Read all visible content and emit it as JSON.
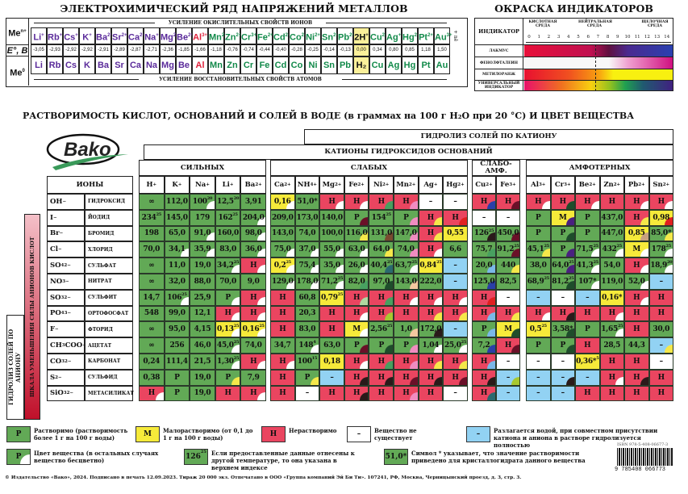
{
  "metals": {
    "title": "ЭЛЕКТРОХИМИЧЕСКИЙ РЯД НАПРЯЖЕНИЙ МЕТАЛЛОВ",
    "top_arrow": "УСИЛЕНИЕ ОКИСЛИТЕЛЬНЫХ СВОЙСТВ ИОНОВ",
    "bottom_arrow": "УСИЛЕНИЕ ВОССТАНОВИТЕЛЬНЫХ СВОЙСТВ АТОМОВ",
    "row_labels": {
      "ion": "Me",
      "ion_sup": "n+",
      "e": "E°, B",
      "atom": "Me",
      "atom_sup": "0"
    },
    "side_label": "+ nē",
    "ions": [
      [
        "Li",
        "+"
      ],
      [
        "Rb",
        "+"
      ],
      [
        "Cs",
        "+"
      ],
      [
        "K",
        "+"
      ],
      [
        "Ba",
        "2+"
      ],
      [
        "Sr",
        "2+"
      ],
      [
        "Ca",
        "2+"
      ],
      [
        "Na",
        "+"
      ],
      [
        "Mg",
        "2+"
      ],
      [
        "Be",
        "2+"
      ],
      [
        "Al",
        "3+"
      ],
      [
        "Mn",
        "2+"
      ],
      [
        "Zn",
        "2+"
      ],
      [
        "Cr",
        "3+"
      ],
      [
        "Fe",
        "2+"
      ],
      [
        "Cd",
        "2+"
      ],
      [
        "Co",
        "2+"
      ],
      [
        "Ni",
        "2+"
      ],
      [
        "Sn",
        "2+"
      ],
      [
        "Pb",
        "2+"
      ],
      [
        "2H",
        "+"
      ],
      [
        "Cu",
        "2+"
      ],
      [
        "Ag",
        "+"
      ],
      [
        "Hg",
        "2+"
      ],
      [
        "Pt",
        "2+"
      ],
      [
        "Au",
        "3+"
      ]
    ],
    "e_values": [
      "-3,05",
      "-2,93",
      "-2,92",
      "-2,92",
      "-2,91",
      "-2,89",
      "-2,87",
      "-2,71",
      "-2,36",
      "-1,85",
      "-1,66",
      "-1,18",
      "-0,76",
      "-0,74",
      "-0,44",
      "-0,40",
      "-0,28",
      "-0,25",
      "-0,14",
      "-0,13",
      "0,00",
      "0,34",
      "0,80",
      "0,85",
      "1,18",
      "1,50"
    ],
    "atoms": [
      "Li",
      "Rb",
      "Cs",
      "K",
      "Ba",
      "Sr",
      "Ca",
      "Na",
      "Mg",
      "Be",
      "Al",
      "Mn",
      "Zn",
      "Cr",
      "Fe",
      "Cd",
      "Co",
      "Ni",
      "Sn",
      "Pb",
      "H₂",
      "Cu",
      "Ag",
      "Hg",
      "Pt",
      "Au"
    ],
    "colors": {
      "active": "#5a2a9a",
      "al": "#e0203a",
      "other": "#128a4a",
      "h": "#111111",
      "h_bg": "#fbf09a"
    }
  },
  "indicators": {
    "title": "ОКРАСКА ИНДИКАТОРОВ",
    "header": "ИНДИКАТОР",
    "acid": "КИСЛОТНАЯ СРЕДА",
    "neutral": "НЕЙТРАЛЬНАЯ СРЕДА",
    "alkaline": "ЩЕЛОЧНАЯ СРЕДА",
    "ph_ticks": [
      "0",
      "1",
      "2",
      "3",
      "4",
      "5",
      "6",
      "7",
      "8",
      "9",
      "10",
      "11",
      "12",
      "13",
      "14"
    ],
    "rows": [
      {
        "name": "ЛАКМУС",
        "gradient": "linear-gradient(90deg,#e8103a,#c01050 45%,#601040 57%,#4a2a90 70%,#2a40b0)"
      },
      {
        "name": "ФЕНОЛФТАЛЕИН",
        "gradient": "linear-gradient(90deg,#f8f8f8,#f8f8f8 57%,#f0a0d0 70%,#d01080)"
      },
      {
        "name": "МЕТИЛОРАНЖ",
        "gradient": "linear-gradient(90deg,#e81030,#f05020 30%,#f8a010 50%,#f8f010 60%,#f8f010)"
      },
      {
        "name": "УНИВЕРСАЛЬНЫЙ ИНДИКАТОР",
        "gradient": "linear-gradient(90deg,#e8106a,#f07020 25%,#f8d010 45%,#90c020 58%,#20a050 68%,#205a70 80%,#402080)"
      }
    ]
  },
  "table": {
    "title": "РАСТВОРИМОСТЬ КИСЛОТ, ОСНОВАНИЙ И СОЛЕЙ В ВОДЕ (в граммах на 100 г H₂O при 20 °C) И ЦВЕТ ВЕЩЕСТВА",
    "logo": "Bako",
    "hydrolysis_cation": "ГИДРОЛИЗ СОЛЕЙ ПО КАТИОНУ",
    "cations_header": "КАТИОНЫ ГИДРОКСИДОВ ОСНОВАНИЙ",
    "groups": [
      "СИЛЬНЫХ",
      "СЛАБЫХ",
      "СЛАБО-АМФ.",
      "АМФОТЕРНЫХ"
    ],
    "ions_header": "ИОНЫ",
    "anion_scale": "ШКАЛА УМЕНЬШЕНИЯ СИЛЫ АНИОНОВ КИСЛОТ",
    "hydrolysis_anion": "ГИДРОЛИЗ СОЛЕЙ ПО АНИОНУ",
    "cations": [
      {
        "b": "H",
        "s": "",
        "p": "+"
      },
      {
        "b": "K",
        "s": "",
        "p": "+"
      },
      {
        "b": "Na",
        "s": "",
        "p": "+"
      },
      {
        "b": "Li",
        "s": "",
        "p": "+"
      },
      {
        "b": "Ba",
        "s": "",
        "p": "2+"
      },
      {
        "b": "Ca",
        "s": "",
        "p": "2+"
      },
      {
        "b": "NH",
        "s": "4",
        "p": "+"
      },
      {
        "b": "Mg",
        "s": "",
        "p": "2+"
      },
      {
        "b": "Fe",
        "s": "",
        "p": "2+"
      },
      {
        "b": "Ni",
        "s": "",
        "p": "2+"
      },
      {
        "b": "Mn",
        "s": "",
        "p": "2+"
      },
      {
        "b": "Ag",
        "s": "",
        "p": "+"
      },
      {
        "b": "Hg",
        "s": "",
        "p": "2+"
      },
      {
        "b": "Cu",
        "s": "",
        "p": "2+"
      },
      {
        "b": "Fe",
        "s": "",
        "p": "3+"
      },
      {
        "b": "Al",
        "s": "",
        "p": "3+"
      },
      {
        "b": "Cr",
        "s": "",
        "p": "3+"
      },
      {
        "b": "Be",
        "s": "",
        "p": "2+"
      },
      {
        "b": "Zn",
        "s": "",
        "p": "2+"
      },
      {
        "b": "Pb",
        "s": "",
        "p": "2+"
      },
      {
        "b": "Sn",
        "s": "",
        "p": "2+"
      }
    ],
    "anions": [
      {
        "b": "OH",
        "s": "",
        "t": "",
        "p": "−",
        "name": "ГИДРОКСИД"
      },
      {
        "b": "I",
        "s": "",
        "t": "",
        "p": "−",
        "name": "ЙОДИД"
      },
      {
        "b": "Br",
        "s": "",
        "t": "",
        "p": "−",
        "name": "БРОМИД"
      },
      {
        "b": "Cl",
        "s": "",
        "t": "",
        "p": "−",
        "name": "ХЛОРИД"
      },
      {
        "b": "SO",
        "s": "4",
        "t": "",
        "p": "2−",
        "name": "СУЛЬФАТ"
      },
      {
        "b": "NO",
        "s": "3",
        "t": "",
        "p": "−",
        "name": "НИТРАТ"
      },
      {
        "b": "SO",
        "s": "3",
        "t": "",
        "p": "2−",
        "name": "СУЛЬФИТ"
      },
      {
        "b": "PO",
        "s": "4",
        "t": "",
        "p": "3−",
        "name": "ОРТОФОСФАТ"
      },
      {
        "b": "F",
        "s": "",
        "t": "",
        "p": "−",
        "name": "ФТОРИД"
      },
      {
        "b": "CH",
        "s": "3",
        "t": "COO",
        "p": "−",
        "name": "АЦЕТАТ"
      },
      {
        "b": "CO",
        "s": "3",
        "t": "",
        "p": "2−",
        "name": "КАРБОНАТ"
      },
      {
        "b": "S",
        "s": "",
        "t": "",
        "p": "2−",
        "name": "СУЛЬФИД"
      },
      {
        "b": "SiO",
        "s": "3",
        "t": "",
        "p": "2−",
        "name": "МЕТАСИЛИКАТ"
      }
    ],
    "cell_bg": {
      "g": "#62a956",
      "y": "#f6ea3a",
      "r": "#ea4560",
      "w": "#ffffff",
      "b": "#92d2f3"
    },
    "corner_colors": {
      "w": "#ffffff",
      "y": "#f5e84a",
      "pk": "#f08cc0",
      "gr": "#48a060",
      "dg": "#1e4d2b",
      "bl": "#2a3fa8",
      "dr": "#6a1028",
      "br": "#7a4a30",
      "pu": "#4a2080",
      "lb": "#7ab8e8",
      "bk": "#2a1a1a",
      "rd": "#e02020",
      "tl": "#2a6a70",
      "tan": "#c8a080",
      "pc": "#f4c8a0",
      "lg": "#b0d8a0",
      "yg": "#a8c830"
    },
    "rows": [
      [
        "∞|g",
        "112,0|g",
        "100|g|20|w",
        "12,5|g|20",
        "3,91|g",
        "0,16|y||w",
        "51,0*|g",
        "Н|r||w",
        "Н|r||w",
        "Н|r||gr",
        "Н|r||pk",
        "–|w",
        "–|w",
        "Н|r||bl",
        "Н|r||dr",
        "Н|r||w",
        "Н|r||dg",
        "Н|r||w",
        "Н|r",
        "Н|r||w",
        "Н|r||w"
      ],
      [
        "234|g|25",
        "145,0|g",
        "179|g",
        "162|g|25",
        "204,0|g||w",
        "209,0|g",
        "173,0|g",
        "140,0|g",
        "Р|g||dr",
        "154|g|25",
        "Р|g||pk",
        "Н|r||y",
        "Н|r||rd",
        "–|w",
        "–|w",
        "Р|g",
        "М|y||pu",
        "Р|g",
        "437,0|g",
        "Н|r||y",
        "0,98|y||rd"
      ],
      [
        "198|g",
        "65,0|g",
        "91,0|g||w",
        "160,0|g",
        "98,0|g||w",
        "143,0|g",
        "74,0|g",
        "100,0|g",
        "116,0|g||y",
        "131,0|g||br",
        "147,0|g||pk",
        "Н|r||y",
        "0,55|y",
        "126|g|25|bk",
        "450,0|g||dr",
        "Р|g",
        "Р|g||dg",
        "Р|g",
        "447,0|g",
        "0,85|y||tan",
        "85,0*|g||y"
      ],
      [
        "70,0|g",
        "34,1|g||w",
        "35,9|g||w",
        "83,0|g",
        "36,0|g||w",
        "75,0|g||w",
        "37,0|g||w",
        "55,0|g||w",
        "63,0|g||w",
        "64,0|g||y",
        "74,0|g||pk",
        "Н|r||w",
        "6,6|g",
        "75,7|g||gr",
        "91,2|g|25|dr",
        "45,1|g|25|y",
        "Р|g||pu",
        "71,5|g|25|w",
        "432|g|25|w",
        "М|y||w",
        "178|g|25|w"
      ],
      [
        "∞|g",
        "11,0|g",
        "19,0|g",
        "34,2|g|25|w",
        "Н|r||w",
        "0,2|y|25|w",
        "75,4|g||w",
        "35,0|g||w",
        "26,0|g||w",
        "40,4|g|25|tl",
        "63,7|g|25|w",
        "0,84|y|25",
        "–|b",
        "20,0|g||lb",
        "440|g||y",
        "38,0|g",
        "64,0|g|25|pu",
        "41,3|g|25|w",
        "54,0|g",
        "Н|r||w",
        "18,9|g|20|w"
      ],
      [
        "∞|g",
        "32,0|g",
        "88,0|g",
        "70,0|g",
        "9,0|g",
        "129,0|g||w",
        "178,0|g||w",
        "71,2|g|25|w",
        "82,0|g||gr",
        "97,0|g||dg",
        "143,0|g||pc",
        "222,0|g",
        "–|b",
        "125,0|g||bl",
        "82,5|g",
        "68,9|g|25",
        "81,2|g|25|dg",
        "107*|g||w",
        "119,0|g",
        "52,0|g||w",
        "–|b"
      ],
      [
        "14,7|g",
        "106|g|25|w",
        "25,9|g",
        "Р|g||w",
        "Н|r||w",
        "Н|r",
        "60,8|g",
        "0,79|y|25",
        "Н|r||lg",
        "Н|r||gr",
        "Н|r||w",
        "Н|r||w",
        "Н|r||w",
        "Н|r||rd",
        "–|w",
        "–|b",
        "–|w",
        "–|b",
        "0,16*|y",
        "Н|r||w",
        "Н|r"
      ],
      [
        "548|g",
        "99,0|g",
        "12,1|g",
        "Н|r||w",
        "Н|r||w",
        "Н|r",
        "20,3|g",
        "Н|r",
        "Н|r||w",
        "Н|r||yg",
        "Н|r",
        "Н|r||y",
        "Н|r||y",
        "Н|r||lb",
        "Н|r||y",
        "Н|r||w",
        "Н|r||bk",
        "Н|r",
        "Н|r||w",
        "Н|r",
        "Н|r"
      ],
      [
        "∞|g",
        "95,0|g",
        "4,15|g",
        "0,13|y|25|w",
        "0,16|y|25|w",
        "Н|r",
        "83,0|g",
        "Н|r",
        "М|y||w",
        "2,56|g|25",
        "1,0|g||pc",
        "172,0|g||bk",
        "–|b",
        "Р|g||lb",
        "М|y||dg",
        "0,5|y|25",
        "3,58*|g||dg",
        "Р|g",
        "1,65|g|25|w",
        "Н|r",
        "30,0|g"
      ],
      [
        "∞|g",
        "256|g",
        "46,0|g",
        "45,0|g|25|w",
        "74,0|g",
        "34,7|g",
        "148|g|4|w",
        "63,0|g",
        "Р|g||dr",
        "Р|g||dg",
        "Р|g||pk",
        "1,04|g||w",
        "25,0|g|25|w",
        "7,2|g||bl",
        "Н|r||dr",
        "Р|g",
        "Р|g||dg",
        "Н|r",
        "28,5|g",
        "44,3|g",
        "–|b||y"
      ],
      [
        "0,24|g",
        "111,4|g",
        "21,5|g",
        "1,30|g|25|w",
        "Н|r||w",
        "Н|r||w",
        "100|g|15",
        "0,18|y",
        "Н|r||w",
        "Н|r||gr",
        "Н|r||pk",
        "Н|r||y",
        "Н|r||y",
        "Н|r||lb",
        "–|w",
        "–|w",
        "–|w",
        "0,36*|y|5",
        "Н|r",
        "Н|r",
        "–|w"
      ],
      [
        "0,38|g",
        "Р|g",
        "19,0|g",
        "Р|g||y",
        "7,9|g",
        "Н|r",
        "Р|g||y",
        "–|b",
        "Н|r||bk",
        "Н|r||bk",
        "Н|r||dr",
        "Н|r||bk",
        "Н|r||dr",
        "Н|r||bk",
        "–|b||yg",
        "–|b",
        "–|b||bk",
        "–|b",
        "Н|r||w",
        "Н|r||bk",
        "Н|r"
      ],
      [
        "Н|r||w",
        "Р|g",
        "19,0|g",
        "Н|r",
        "Н|r||w",
        "Н|r",
        "–|w",
        "Н|r",
        "Н|r||bk",
        "Н|r",
        "Н|r||pk",
        "Н|r",
        "–|w",
        "Н|r||tl",
        "–|b",
        "–|b",
        "–|b",
        "Н|r",
        "Н|r",
        "Н|r",
        "Н|r"
      ]
    ]
  },
  "legend": {
    "soluble": {
      "box": "Р",
      "text": "Растворимо (растворимость более 1 г на 100 г воды)"
    },
    "slightly": {
      "box": "М",
      "text": "Малорастворимо (от 0,1 до 1 г на 100 г воды)"
    },
    "insoluble": {
      "box": "Н",
      "text": "Нерастворимо"
    },
    "not_exist": {
      "box": "–",
      "text": "Вещество не существует"
    },
    "decomposes": {
      "box": "–",
      "text": "Разлагается водой, при совместном присутствии катиона и аниона в растворе гидролизуется полностью"
    },
    "color": {
      "box": "Р",
      "text": "Цвет вещества (в остальных случаях вещество бесцветно)"
    },
    "temperature": {
      "box": "126",
      "box_sup": "25",
      "text": "Если предоставленные данные отнесены к другой температуре, то она указана в верхнем индексе"
    },
    "hydrate": {
      "box": "51,0*",
      "text": "Символ * указывает, что значение растворимости приведено для кристаллогидрата данного вещества"
    }
  },
  "isbn": {
    "label": "ISBN 978-5-408-06677-3",
    "digits": "9 785408 066773"
  },
  "footer": "© Издательство «Вако», 2024. Подписано в печать 12.09.2023. Тираж 20 000 экз. Отпечатано в ООО «Группа компаний Эй Би Ти». 107241, РФ, Москва, Черницынский проезд, д. 3, стр. 3."
}
